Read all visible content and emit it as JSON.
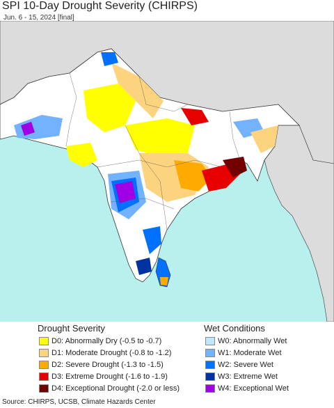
{
  "header": {
    "title": "SPI 10-Day Drought Severity (CHIRPS)",
    "subtitle": "Jun. 6 - 15, 2024 [final]"
  },
  "map": {
    "colors": {
      "ocean": "#b8f0ee",
      "outside": "#dcdcdc",
      "land": "#ffffff",
      "border": "#333333",
      "d0": "#ffff00",
      "d1": "#fcd37f",
      "d2": "#ffaa00",
      "d3": "#e60000",
      "d4": "#730000",
      "w0": "#bee8ff",
      "w1": "#73b2ff",
      "w2": "#0070ff",
      "w3": "#0032a0",
      "w4": "#a000e6"
    }
  },
  "legend": {
    "drought": {
      "heading": "Drought Severity",
      "items": [
        {
          "label": "D0: Abnormally Dry (-0.5 to -0.7)",
          "color": "#ffff00"
        },
        {
          "label": "D1: Moderate Drought (-0.8 to -1.2)",
          "color": "#fcd37f"
        },
        {
          "label": "D2: Severe Drought (-1.3 to -1.5)",
          "color": "#ffaa00"
        },
        {
          "label": "D3: Extreme Drought (-1.6 to -1.9)",
          "color": "#e60000"
        },
        {
          "label": "D4: Exceptional Drought (-2.0 or less)",
          "color": "#730000"
        }
      ]
    },
    "wet": {
      "heading": "Wet Conditions",
      "items": [
        {
          "label": "W0: Abnormally Wet",
          "color": "#bee8ff"
        },
        {
          "label": "W1: Moderate Wet",
          "color": "#73b2ff"
        },
        {
          "label": "W2: Severe Wet",
          "color": "#0070ff"
        },
        {
          "label": "W3: Extreme Wet",
          "color": "#0032a0"
        },
        {
          "label": "W4: Exceptional Wet",
          "color": "#a000e6"
        }
      ]
    }
  },
  "footer": {
    "source": "Source: CHIRPS, UCSB, Climate Hazards Center"
  }
}
